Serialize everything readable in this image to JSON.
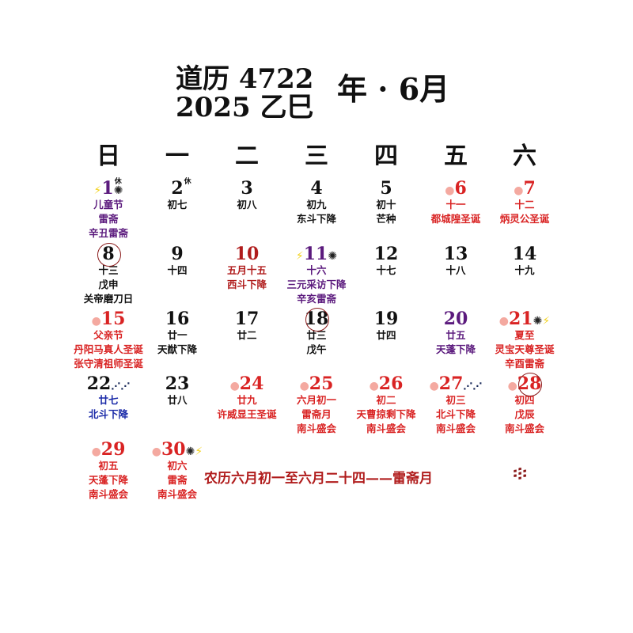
{
  "header": {
    "line1": "道历 4722",
    "line2": "2025 乙巳",
    "line3": "年 · 6月"
  },
  "weekdays": [
    "日",
    "一",
    "二",
    "三",
    "四",
    "五",
    "六"
  ],
  "colors": {
    "black": "#111111",
    "purple": "#5b1a7d",
    "red": "#d92323",
    "darkred": "#b01c1c",
    "blue": "#1a2aa8"
  },
  "days": [
    {
      "d": "1",
      "c": "purple",
      "pre": [
        "lightning"
      ],
      "post": [
        "spider"
      ],
      "rest": "休",
      "lines": [
        [
          "儿童节",
          "purple"
        ],
        [
          "雷斋",
          "purple"
        ],
        [
          "辛丑雷斋",
          "purple"
        ]
      ]
    },
    {
      "d": "2",
      "c": "black",
      "rest": "休",
      "lines": [
        [
          "初七",
          "black"
        ]
      ]
    },
    {
      "d": "3",
      "c": "black",
      "lines": [
        [
          "初八",
          "black"
        ]
      ]
    },
    {
      "d": "4",
      "c": "black",
      "lines": [
        [
          "初九",
          "black"
        ],
        [
          "东斗下降",
          "black"
        ]
      ]
    },
    {
      "d": "5",
      "c": "black",
      "lines": [
        [
          "初十",
          "black"
        ],
        [
          "芒种",
          "black"
        ]
      ]
    },
    {
      "d": "6",
      "c": "red",
      "pre": [
        "peach"
      ],
      "lines": [
        [
          "十一",
          "red"
        ],
        [
          "都城隍圣诞",
          "red"
        ]
      ]
    },
    {
      "d": "7",
      "c": "red",
      "pre": [
        "peach"
      ],
      "lines": [
        [
          "十二",
          "red"
        ],
        [
          "炳灵公圣诞",
          "red"
        ]
      ]
    },
    {
      "d": "8",
      "c": "black",
      "circle": true,
      "lines": [
        [
          "十三",
          "black"
        ],
        [
          "戊申",
          "black"
        ],
        [
          "关帝磨刀日",
          "black"
        ]
      ]
    },
    {
      "d": "9",
      "c": "black",
      "lines": [
        [
          "十四",
          "black"
        ]
      ]
    },
    {
      "d": "10",
      "c": "darkred",
      "lines": [
        [
          "五月十五",
          "darkred"
        ],
        [
          "西斗下降",
          "darkred"
        ]
      ]
    },
    {
      "d": "11",
      "c": "purple",
      "pre": [
        "lightning"
      ],
      "post": [
        "spider"
      ],
      "lines": [
        [
          "十六",
          "purple"
        ],
        [
          "三元采访下降",
          "purple"
        ],
        [
          "辛亥雷斋",
          "purple"
        ]
      ]
    },
    {
      "d": "12",
      "c": "black",
      "lines": [
        [
          "十七",
          "black"
        ]
      ]
    },
    {
      "d": "13",
      "c": "black",
      "lines": [
        [
          "十八",
          "black"
        ]
      ]
    },
    {
      "d": "14",
      "c": "black",
      "lines": [
        [
          "十九",
          "black"
        ]
      ]
    },
    {
      "d": "15",
      "c": "red",
      "pre": [
        "peach"
      ],
      "lines": [
        [
          "父亲节",
          "red"
        ],
        [
          "丹阳马真人圣诞",
          "red"
        ],
        [
          "张守清祖师圣诞",
          "red"
        ]
      ]
    },
    {
      "d": "16",
      "c": "black",
      "lines": [
        [
          "廿一",
          "black"
        ],
        [
          "天猷下降",
          "black"
        ]
      ]
    },
    {
      "d": "17",
      "c": "black",
      "lines": [
        [
          "廿二",
          "black"
        ]
      ]
    },
    {
      "d": "18",
      "c": "black",
      "circle": true,
      "lines": [
        [
          "廿三",
          "black"
        ],
        [
          "戊午",
          "black"
        ]
      ]
    },
    {
      "d": "19",
      "c": "black",
      "lines": [
        [
          "廿四",
          "black"
        ]
      ]
    },
    {
      "d": "20",
      "c": "purple",
      "lines": [
        [
          "廿五",
          "purple"
        ],
        [
          "天蓬下降",
          "purple"
        ]
      ]
    },
    {
      "d": "21",
      "c": "red",
      "pre": [
        "peach"
      ],
      "post": [
        "spider",
        "lightning"
      ],
      "lines": [
        [
          "夏至",
          "red"
        ],
        [
          "灵宝天尊圣诞",
          "red"
        ],
        [
          "辛酉雷斋",
          "red"
        ]
      ]
    },
    {
      "d": "22",
      "c": "black",
      "post": [
        "big-dipper"
      ],
      "lines": [
        [
          "廿七",
          "blue"
        ],
        [
          "北斗下降",
          "blue"
        ]
      ]
    },
    {
      "d": "23",
      "c": "black",
      "lines": [
        [
          "廿八",
          "black"
        ]
      ]
    },
    {
      "d": "24",
      "c": "red",
      "pre": [
        "peach"
      ],
      "lines": [
        [
          "廿九",
          "red"
        ],
        [
          "许威显王圣诞",
          "red"
        ]
      ]
    },
    {
      "d": "25",
      "c": "red",
      "pre": [
        "peach"
      ],
      "lines": [
        [
          "六月初一",
          "red"
        ],
        [
          "雷斋月",
          "red"
        ],
        [
          "南斗盛会",
          "red"
        ]
      ]
    },
    {
      "d": "26",
      "c": "red",
      "pre": [
        "peach"
      ],
      "lines": [
        [
          "初二",
          "red"
        ],
        [
          "天曹掠剩下降",
          "red"
        ],
        [
          "南斗盛会",
          "red"
        ]
      ]
    },
    {
      "d": "27",
      "c": "red",
      "pre": [
        "peach"
      ],
      "post": [
        "big-dipper"
      ],
      "lines": [
        [
          "初三",
          "red"
        ],
        [
          "北斗下降",
          "red"
        ],
        [
          "南斗盛会",
          "red"
        ]
      ]
    },
    {
      "d": "28",
      "c": "red",
      "pre": [
        "peach"
      ],
      "circle": true,
      "lines": [
        [
          "初四",
          "red"
        ],
        [
          "戊辰",
          "red"
        ],
        [
          "南斗盛会",
          "red"
        ]
      ]
    },
    {
      "d": "29",
      "c": "red",
      "pre": [
        "peach"
      ],
      "lines": [
        [
          "初五",
          "red"
        ],
        [
          "天蓬下降",
          "red"
        ],
        [
          "南斗盛会",
          "red"
        ]
      ]
    },
    {
      "d": "30",
      "c": "red",
      "pre": [
        "peach"
      ],
      "post": [
        "spider",
        "lightning"
      ],
      "lines": [
        [
          "初六",
          "red"
        ],
        [
          "雷斋",
          "red"
        ],
        [
          "南斗盛会",
          "red"
        ]
      ]
    }
  ],
  "note": "农历六月初一至六月二十四——雷斋月",
  "seal_icon": "thunder-seal-icon"
}
